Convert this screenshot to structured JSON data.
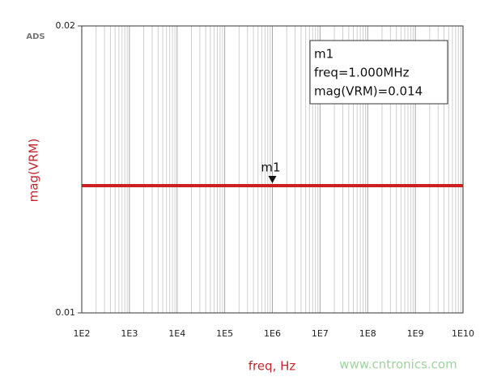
{
  "chart_data": {
    "type": "line",
    "app_label": "ADS",
    "x_label": "freq, Hz",
    "y_label": "mag(VRM)",
    "log_x": true,
    "log_y": true,
    "grid": true,
    "minor_grid": true,
    "xlim": [
      100,
      10000000000
    ],
    "ylim": [
      0.01,
      0.02
    ],
    "xticks": [
      {
        "value": 100,
        "label": "1E2"
      },
      {
        "value": 1000,
        "label": "1E3"
      },
      {
        "value": 10000,
        "label": "1E4"
      },
      {
        "value": 100000,
        "label": "1E5"
      },
      {
        "value": 1000000,
        "label": "1E6"
      },
      {
        "value": 10000000,
        "label": "1E7"
      },
      {
        "value": 100000000,
        "label": "1E8"
      },
      {
        "value": 1000000000,
        "label": "1E9"
      },
      {
        "value": 10000000000,
        "label": "1E10"
      }
    ],
    "yticks": [
      0.01,
      0.02
    ],
    "x": [
      100,
      10000000000
    ],
    "series": [
      {
        "name": "mag(VRM)",
        "color": "#cc1f1f",
        "values": [
          0.0136,
          0.0136
        ]
      }
    ],
    "marker": {
      "name": "m1",
      "x": 1000000,
      "y": 0.0136,
      "readout": [
        "m1",
        "freq=1.000MHz",
        "mag(VRM)=0.014"
      ]
    },
    "watermark": "www.cntronics.com"
  }
}
